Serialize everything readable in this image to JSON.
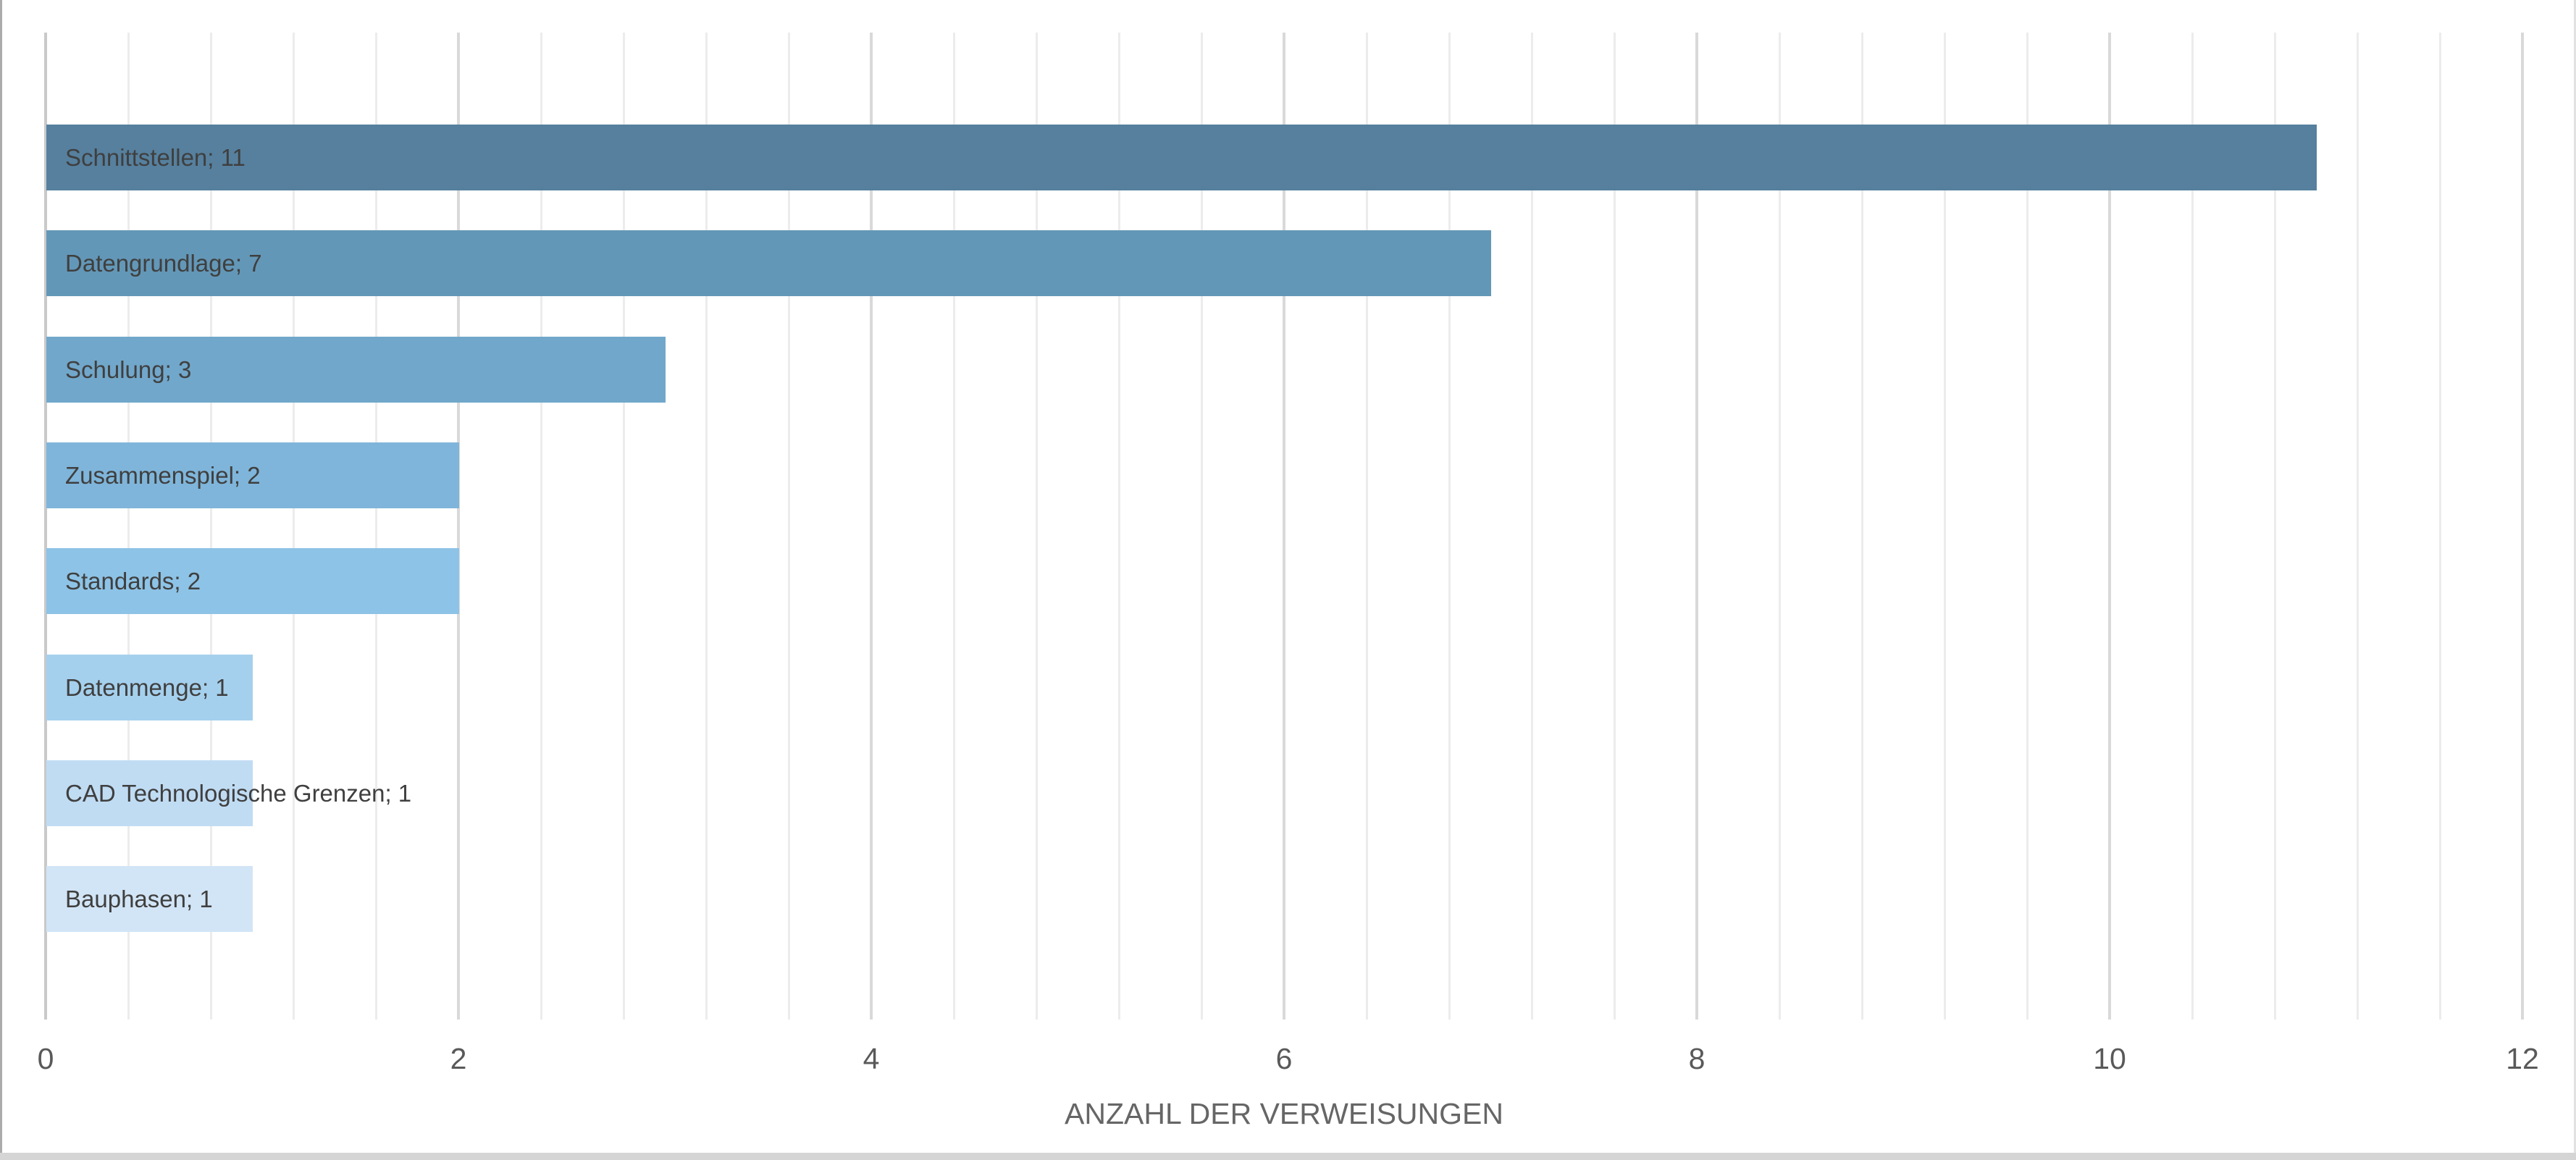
{
  "chart_data": {
    "type": "bar",
    "orientation": "horizontal",
    "title": "",
    "categories": [
      "Schnittstellen",
      "Datengrundlage",
      "Schulung",
      "Zusammenspiel",
      "Standards",
      "Datenmenge",
      "CAD Technologische Grenzen",
      "Bauphasen"
    ],
    "values": [
      11,
      7,
      3,
      2,
      2,
      1,
      1,
      1
    ],
    "data_labels": [
      "Schnittstellen; 11",
      "Datengrundlage; 7",
      "Schulung; 3",
      "Zusammenspiel; 2",
      "Standards; 2",
      "Datenmenge; 1",
      "CAD Technologische Grenzen; 1",
      "Bauphasen; 1"
    ],
    "bar_colors": [
      "#56809e",
      "#6397b7",
      "#71a7cb",
      "#7fb5da",
      "#8dc3e6",
      "#a5d0ed",
      "#c0dcf3",
      "#d2e5f6"
    ],
    "xlabel": "ANZAHL DER VERWEISUNGEN",
    "ylabel": "",
    "xlim": [
      0,
      12
    ],
    "x_ticks": [
      0,
      2,
      4,
      6,
      8,
      10,
      12
    ],
    "minor_grid_step": 0.4,
    "grid": "vertical, minor and major, no bottom axis line",
    "legend": "none"
  },
  "colors": {
    "minor_gridline": "#ececec",
    "major_gridline": "#d9d9d9",
    "zero_axis_line": "#c9c9c9",
    "bar_label_text": "#3f3f3f",
    "tick_text": "#595959",
    "axis_title_text": "#666666",
    "window_border_left": "#ababab",
    "window_border_right": "#e2e2e2",
    "window_strip_bottom": "#d5d5d5",
    "background": "#ffffff"
  }
}
